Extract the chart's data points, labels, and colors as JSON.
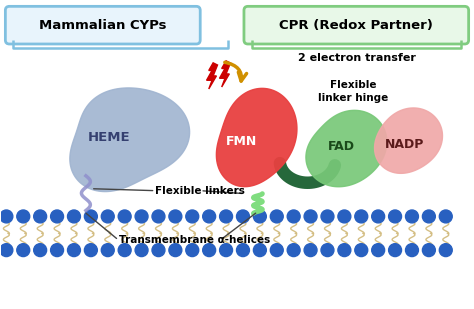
{
  "bg_color": "#ffffff",
  "label_mammalian": "Mammalian CYPs",
  "label_cpr": "CPR (Redox Partner)",
  "label_heme": "HEME",
  "label_fmn": "FMN",
  "label_fad": "FAD",
  "label_nadp": "NADP",
  "label_electron": "2 electron transfer",
  "label_flexible_hinge": "Flexible\nlinker hinge",
  "label_flexible_linkers": "Flexible linkers",
  "label_transmembrane": "Transmembrane α-helices",
  "color_heme": "#a0b4d0",
  "color_fmn": "#e84040",
  "color_fad": "#78c878",
  "color_nadp": "#f0a8a8",
  "color_linker_dark": "#1a6030",
  "color_membrane_circle": "#2860c0",
  "color_membrane_tail": "#d0b878",
  "color_box_mammalian_border": "#80c0e0",
  "color_box_mammalian_fill": "#e8f4fc",
  "color_box_cpr_border": "#80cc80",
  "color_box_cpr_fill": "#e8f8e8",
  "color_arrow": "#d09000",
  "color_lightning": "#cc0000",
  "color_helix": "#80dd80",
  "color_purple_linker": "#9090cc"
}
